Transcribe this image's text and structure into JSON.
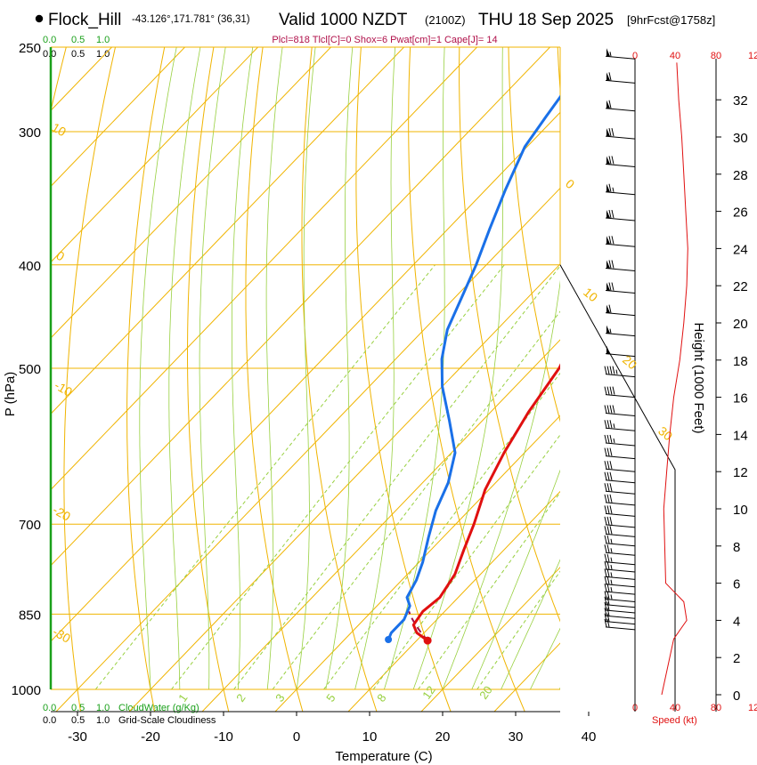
{
  "header": {
    "station": "Flock_Hill",
    "coords": "-43.126°,171.781° (36,31)",
    "valid": "Valid 1000 NZDT",
    "valid_utc": "(2100Z)",
    "date": "THU 18 Sep 2025",
    "forecast": "[9hrFcst@1758z]"
  },
  "indices": "Plcl=818 Tlcl[C]=0 Shox=6 Pwat[cm]=1 Cape[J]= 14",
  "legend": {
    "cloud_water": "CloudWater (g/Kg)",
    "cloudiness": "Grid-Scale Cloudiness",
    "cw_ticks": [
      "0.0",
      "0.5",
      "1.0"
    ],
    "cl_ticks": [
      "0.0",
      "0.5",
      "1.0"
    ],
    "speed": "Speed (kt)",
    "speed_ticks": [
      "0",
      "40",
      "80",
      "12"
    ]
  },
  "colors": {
    "isotherm": "#f0b400",
    "dry_adiabat": "#f0b400",
    "moist_adiabat": "#98d040",
    "mixing_ratio": "#98d040",
    "temperature": "#e01010",
    "dewpoint": "#1a70e8",
    "parcel": "#a0104a",
    "wind_speed": "#e01010",
    "cloud": "#1aa01a"
  },
  "chart_data": {
    "type": "line",
    "title": "Flock_Hill Valid 1000 NZDT (2100Z) THU 18 Sep 2025 [9hrFcst@1758z]",
    "xlabel": "Temperature (C)",
    "ylabel": "P (hPa)",
    "y2label": "Height (1000 Feet)",
    "xlim": [
      -35,
      45
    ],
    "ylim": [
      1000,
      250
    ],
    "x_ticks": [
      -30,
      -20,
      -10,
      0,
      10,
      20,
      30,
      40
    ],
    "pressure_labels": [
      250,
      300,
      400,
      500,
      700,
      850,
      1000
    ],
    "height_ticks": [
      0,
      2,
      4,
      6,
      8,
      10,
      12,
      14,
      16,
      18,
      20,
      22,
      24,
      26,
      28,
      30,
      32
    ],
    "isotherm_labels": [
      {
        "t": 10,
        "label": "10"
      },
      {
        "t": 0,
        "label": "0"
      },
      {
        "t": -10,
        "label": "-10"
      },
      {
        "t": -20,
        "label": "-20"
      },
      {
        "t": -30,
        "label": "-30"
      },
      {
        "t": 0,
        "label": "0"
      },
      {
        "t": 10,
        "label": "10"
      },
      {
        "t": 20,
        "label": "20"
      },
      {
        "t": 30,
        "label": "30"
      }
    ],
    "mixing_ratio_labels": [
      "1",
      "2",
      "3",
      "5",
      "8",
      "12",
      "20"
    ],
    "temperature": {
      "name": "Temperature",
      "points": [
        [
          900,
          11.5
        ],
        [
          885,
          9.0
        ],
        [
          870,
          7.5
        ],
        [
          845,
          7.0
        ],
        [
          820,
          7.5
        ],
        [
          780,
          6.5
        ],
        [
          740,
          4.5
        ],
        [
          700,
          2.5
        ],
        [
          650,
          -0.5
        ],
        [
          600,
          -2.8
        ],
        [
          550,
          -4.8
        ],
        [
          500,
          -6.4
        ],
        [
          450,
          -9.4
        ],
        [
          400,
          -13.8
        ],
        [
          370,
          -17.6
        ],
        [
          340,
          -21.5
        ],
        [
          310,
          -23.6
        ],
        [
          290,
          -22.8
        ],
        [
          270,
          -22.6
        ],
        [
          256,
          -22.6
        ]
      ]
    },
    "dewpoint": {
      "name": "Dewpoint",
      "points": [
        [
          898,
          6.0
        ],
        [
          885,
          5.5
        ],
        [
          860,
          5.5
        ],
        [
          835,
          4.5
        ],
        [
          820,
          3.0
        ],
        [
          790,
          2.0
        ],
        [
          760,
          0.5
        ],
        [
          720,
          -2.0
        ],
        [
          680,
          -4.5
        ],
        [
          640,
          -6.5
        ],
        [
          600,
          -9.5
        ],
        [
          560,
          -14.5
        ],
        [
          520,
          -20.0
        ],
        [
          490,
          -23.7
        ],
        [
          460,
          -26.8
        ],
        [
          430,
          -29.0
        ],
        [
          400,
          -31.4
        ],
        [
          370,
          -34.3
        ],
        [
          340,
          -37.3
        ],
        [
          310,
          -40.3
        ],
        [
          290,
          -41.4
        ],
        [
          270,
          -42.5
        ],
        [
          256,
          -43.0
        ]
      ]
    },
    "parcel": {
      "name": "Parcel",
      "points": [
        [
          900,
          11.5
        ],
        [
          885,
          9.6
        ],
        [
          870,
          7.8
        ],
        [
          855,
          6.1
        ],
        [
          845,
          5.1
        ]
      ]
    },
    "wind_speed_profile": {
      "name": "Speed (kt)",
      "xlim": [
        0,
        120
      ],
      "points": [
        [
          0,
          0
        ],
        [
          3,
          12
        ],
        [
          4,
          25
        ],
        [
          5,
          22
        ],
        [
          6,
          4
        ],
        [
          8,
          3
        ],
        [
          10,
          2
        ],
        [
          12,
          5
        ],
        [
          14,
          8
        ],
        [
          16,
          12
        ],
        [
          18,
          18
        ],
        [
          20,
          22
        ],
        [
          22,
          25
        ],
        [
          24,
          26
        ],
        [
          26,
          24
        ],
        [
          28,
          22
        ],
        [
          30,
          20
        ],
        [
          32,
          17
        ],
        [
          34,
          15
        ]
      ]
    },
    "wind_barbs": [
      {
        "height": 3.5,
        "speed": 20
      },
      {
        "height": 3.8,
        "speed": 20
      },
      {
        "height": 4.1,
        "speed": 20
      },
      {
        "height": 4.4,
        "speed": 20
      },
      {
        "height": 4.7,
        "speed": 20
      },
      {
        "height": 5.0,
        "speed": 25
      },
      {
        "height": 5.4,
        "speed": 25
      },
      {
        "height": 5.8,
        "speed": 25
      },
      {
        "height": 6.2,
        "speed": 25
      },
      {
        "height": 6.6,
        "speed": 25
      },
      {
        "height": 7.0,
        "speed": 25
      },
      {
        "height": 7.5,
        "speed": 25
      },
      {
        "height": 8.0,
        "speed": 25
      },
      {
        "height": 8.5,
        "speed": 30
      },
      {
        "height": 9.0,
        "speed": 30
      },
      {
        "height": 9.6,
        "speed": 30
      },
      {
        "height": 10.2,
        "speed": 30
      },
      {
        "height": 10.8,
        "speed": 30
      },
      {
        "height": 11.4,
        "speed": 30
      },
      {
        "height": 12.0,
        "speed": 30
      },
      {
        "height": 12.7,
        "speed": 30
      },
      {
        "height": 13.4,
        "speed": 35
      },
      {
        "height": 14.2,
        "speed": 35
      },
      {
        "height": 15.0,
        "speed": 40
      },
      {
        "height": 16.0,
        "speed": 40
      },
      {
        "height": 17.1,
        "speed": 45
      },
      {
        "height": 18.2,
        "speed": 50
      },
      {
        "height": 19.3,
        "speed": 55
      },
      {
        "height": 20.4,
        "speed": 60
      },
      {
        "height": 21.6,
        "speed": 70
      },
      {
        "height": 22.8,
        "speed": 70
      },
      {
        "height": 24.1,
        "speed": 70
      },
      {
        "height": 25.5,
        "speed": 70
      },
      {
        "height": 26.9,
        "speed": 65
      },
      {
        "height": 28.4,
        "speed": 70
      },
      {
        "height": 29.9,
        "speed": 70
      },
      {
        "height": 31.4,
        "speed": 60
      },
      {
        "height": 32.9,
        "speed": 60
      },
      {
        "height": 34.2,
        "speed": 55
      }
    ],
    "cloud_line": {
      "name": "Cloudiness",
      "value": 0.0
    }
  }
}
